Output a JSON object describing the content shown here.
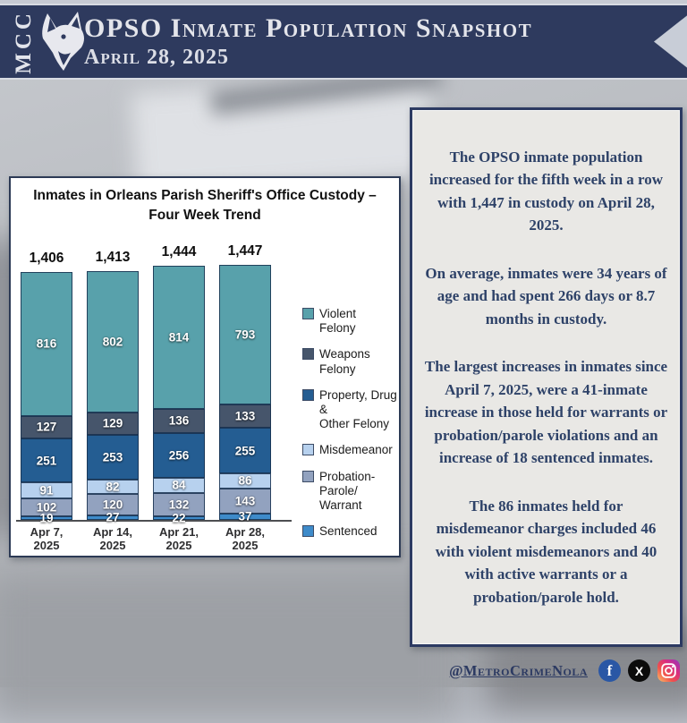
{
  "header": {
    "logo_text": "MCC",
    "title": "OPSO Inmate Population Snapshot",
    "date": "April 28, 2025"
  },
  "colors": {
    "banner_navy": "#2e3a5e",
    "panel_bg": "#e9e8e5",
    "panel_text_navy": "#2e4268",
    "chart_border": "#2c3a55"
  },
  "chart_data": {
    "type": "bar",
    "stacked": true,
    "title": "Inmates in Orleans Parish Sheriff's Office Custody –\nFour Week Trend",
    "categories": [
      "Apr 7,\n2025",
      "Apr 14,\n2025",
      "Apr 21,\n2025",
      "Apr 28,\n2025"
    ],
    "totals": [
      "1,406",
      "1,413",
      "1,444",
      "1,447"
    ],
    "legend_position": "right",
    "grid": false,
    "series": [
      {
        "name": "Violent Felony",
        "legend_label": "Violent\nFelony",
        "color": "#58a1ab",
        "values": [
          816,
          802,
          814,
          793
        ]
      },
      {
        "name": "Weapons Felony",
        "legend_label": "Weapons\nFelony",
        "color": "#46556b",
        "values": [
          127,
          129,
          136,
          133
        ]
      },
      {
        "name": "Property, Drug & Other Felony",
        "legend_label": "Property, Drug &\nOther Felony",
        "color": "#245d92",
        "values": [
          251,
          253,
          256,
          255
        ]
      },
      {
        "name": "Misdemeanor",
        "legend_label": "Misdemeanor",
        "color": "#b7d1ee",
        "values": [
          91,
          82,
          84,
          86
        ]
      },
      {
        "name": "Probation-Parole/Warrant",
        "legend_label": "Probation-Parole/\nWarrant",
        "color": "#92a2bf",
        "values": [
          102,
          120,
          132,
          143
        ]
      },
      {
        "name": "Sentenced",
        "legend_label": "Sentenced",
        "color": "#3e8bca",
        "values": [
          19,
          27,
          22,
          37
        ]
      }
    ]
  },
  "panel": {
    "paragraphs": [
      "The OPSO inmate population increased for the fifth week in a row with 1,447 in custody on April 28, 2025.",
      "On average, inmates were 34 years of age and had spent 266 days or 8.7 months in custody.",
      "The largest increases in inmates since April 7, 2025, were a 41-inmate increase in those held for warrants or probation/parole violations and an increase of 18 sentenced inmates.",
      "The 86 inmates held for misdemeanor charges included 46 with violent misdemeanors and 40 with active warrants or a probation/parole hold."
    ]
  },
  "footer": {
    "handle": "@MetroCrimeNola",
    "icons": [
      "facebook-icon",
      "x-icon",
      "instagram-icon"
    ]
  }
}
